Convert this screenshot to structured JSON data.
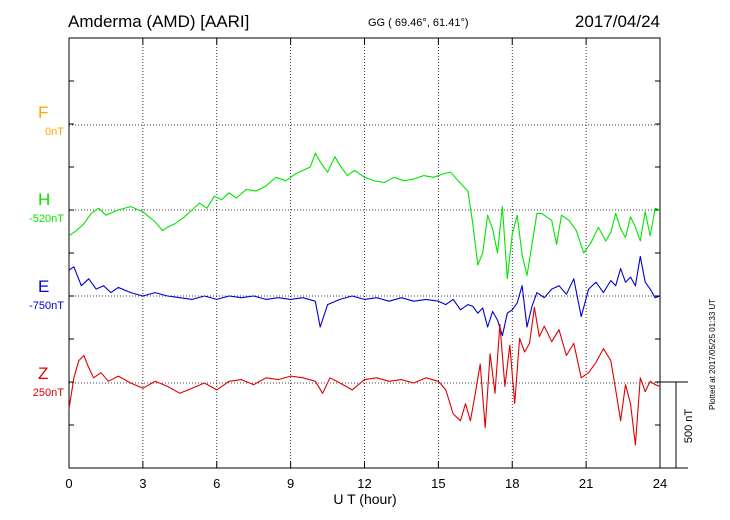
{
  "header": {
    "station": "Amderma (AMD)  [AARI]",
    "coords": "GG ( 69.46°,  61.41°)",
    "date": "2017/04/24"
  },
  "colors": {
    "F": "#ffa500",
    "H": "#00e600",
    "E": "#0000d0",
    "Z": "#e00000"
  },
  "chart_data": {
    "type": "line",
    "xlabel": "U T (hour)",
    "xlim": [
      0,
      24
    ],
    "x_ticks": [
      "0",
      "3",
      "6",
      "9",
      "12",
      "15",
      "18",
      "21",
      "24"
    ],
    "grid": true,
    "scale_bar": "500 nT",
    "plotted_note": "Plotted at 2017/05/25 01:33 UT",
    "series": [
      {
        "name": "F",
        "baseline": "0nT",
        "x": [],
        "values": []
      },
      {
        "name": "H",
        "baseline": "-520nT",
        "x": [
          0,
          0.3,
          0.6,
          0.9,
          1.2,
          1.5,
          2,
          2.5,
          3,
          3.5,
          3.8,
          4,
          4.3,
          4.6,
          5,
          5.3,
          5.6,
          5.9,
          6.2,
          6.5,
          6.8,
          7.2,
          7.6,
          8,
          8.4,
          8.8,
          9.2,
          9.5,
          9.8,
          10,
          10.2,
          10.5,
          10.8,
          11,
          11.3,
          11.6,
          12,
          12.4,
          12.8,
          13.2,
          13.6,
          14,
          14.4,
          14.8,
          15.2,
          15.5,
          15.8,
          16,
          16.2,
          16.4,
          16.6,
          16.8,
          17,
          17.2,
          17.4,
          17.6,
          17.8,
          18,
          18.2,
          18.4,
          18.6,
          18.8,
          19,
          19.2,
          19.4,
          19.6,
          19.8,
          20,
          20.3,
          20.6,
          20.9,
          21.2,
          21.5,
          21.8,
          22,
          22.2,
          22.4,
          22.6,
          22.8,
          23,
          23.2,
          23.4,
          23.6,
          23.8,
          24
        ],
        "values": [
          -150,
          -120,
          -80,
          -20,
          10,
          -30,
          0,
          20,
          -10,
          -70,
          -120,
          -100,
          -80,
          -50,
          0,
          40,
          10,
          80,
          60,
          100,
          70,
          120,
          110,
          140,
          190,
          170,
          210,
          230,
          250,
          330,
          280,
          220,
          310,
          260,
          200,
          230,
          190,
          170,
          160,
          190,
          170,
          180,
          200,
          190,
          210,
          220,
          170,
          140,
          110,
          -80,
          -320,
          -250,
          -30,
          -110,
          -250,
          20,
          -400,
          -140,
          -30,
          -260,
          -380,
          -200,
          -20,
          -20,
          -40,
          -60,
          -200,
          -30,
          -60,
          -120,
          -250,
          -190,
          -100,
          -180,
          -130,
          -20,
          -110,
          -160,
          -40,
          -100,
          -180,
          -10,
          -150,
          10,
          0
        ]
      },
      {
        "name": "E",
        "baseline": "-750nT",
        "x": [
          0,
          0.2,
          0.5,
          0.8,
          1.1,
          1.4,
          1.7,
          2,
          2.5,
          3,
          3.5,
          4,
          4.5,
          5,
          5.5,
          6,
          6.5,
          7,
          7.5,
          8,
          8.5,
          9,
          9.5,
          10,
          10.2,
          10.5,
          11,
          11.5,
          12,
          12.5,
          13,
          13.5,
          14,
          14.5,
          15,
          15.3,
          15.6,
          15.9,
          16.2,
          16.4,
          16.6,
          16.8,
          17,
          17.2,
          17.4,
          17.6,
          17.8,
          18,
          18.2,
          18.4,
          18.6,
          18.8,
          19,
          19.3,
          19.6,
          19.9,
          20.2,
          20.5,
          20.8,
          21.1,
          21.4,
          21.7,
          22,
          22.2,
          22.4,
          22.6,
          22.8,
          23,
          23.2,
          23.4,
          23.6,
          23.8,
          24
        ],
        "values": [
          150,
          170,
          60,
          100,
          40,
          60,
          20,
          50,
          20,
          0,
          20,
          0,
          -10,
          -20,
          0,
          -20,
          0,
          -10,
          0,
          -20,
          -10,
          -20,
          -10,
          -30,
          -180,
          -50,
          -20,
          0,
          -20,
          -10,
          -30,
          -10,
          -30,
          -20,
          -30,
          -50,
          -20,
          -80,
          -50,
          -60,
          -100,
          -70,
          -180,
          -90,
          -140,
          -230,
          -100,
          -80,
          -40,
          60,
          -180,
          -60,
          20,
          -10,
          40,
          60,
          10,
          100,
          -120,
          40,
          80,
          20,
          90,
          60,
          160,
          80,
          110,
          60,
          230,
          80,
          40,
          -10,
          0
        ]
      },
      {
        "name": "Z",
        "baseline": "250nT",
        "x": [
          0,
          0.2,
          0.4,
          0.6,
          0.8,
          1,
          1.3,
          1.6,
          2,
          2.5,
          3,
          3.5,
          4,
          4.5,
          5,
          5.5,
          6,
          6.5,
          7,
          7.5,
          8,
          8.5,
          9,
          9.5,
          10,
          10.3,
          10.6,
          11,
          11.5,
          12,
          12.5,
          13,
          13.5,
          14,
          14.5,
          15,
          15.3,
          15.6,
          15.9,
          16.1,
          16.3,
          16.5,
          16.7,
          16.9,
          17.1,
          17.3,
          17.5,
          17.7,
          17.9,
          18.1,
          18.3,
          18.5,
          18.7,
          18.9,
          19.1,
          19.3,
          19.6,
          19.9,
          20.2,
          20.5,
          20.8,
          21.1,
          21.4,
          21.7,
          22,
          22.2,
          22.4,
          22.6,
          22.8,
          23,
          23.2,
          23.4,
          23.6,
          23.8,
          24
        ],
        "values": [
          -150,
          30,
          130,
          160,
          90,
          30,
          60,
          10,
          40,
          0,
          -30,
          10,
          -20,
          -60,
          -30,
          0,
          -40,
          10,
          20,
          -10,
          30,
          20,
          40,
          30,
          10,
          -60,
          30,
          0,
          -40,
          20,
          30,
          10,
          20,
          0,
          30,
          10,
          -40,
          -180,
          -220,
          -120,
          -220,
          -60,
          110,
          -260,
          170,
          -60,
          340,
          -20,
          220,
          -120,
          260,
          180,
          230,
          440,
          270,
          330,
          240,
          310,
          160,
          230,
          30,
          60,
          120,
          200,
          130,
          -40,
          -220,
          -10,
          -120,
          -360,
          30,
          -50,
          10,
          -10,
          -20
        ]
      }
    ]
  }
}
